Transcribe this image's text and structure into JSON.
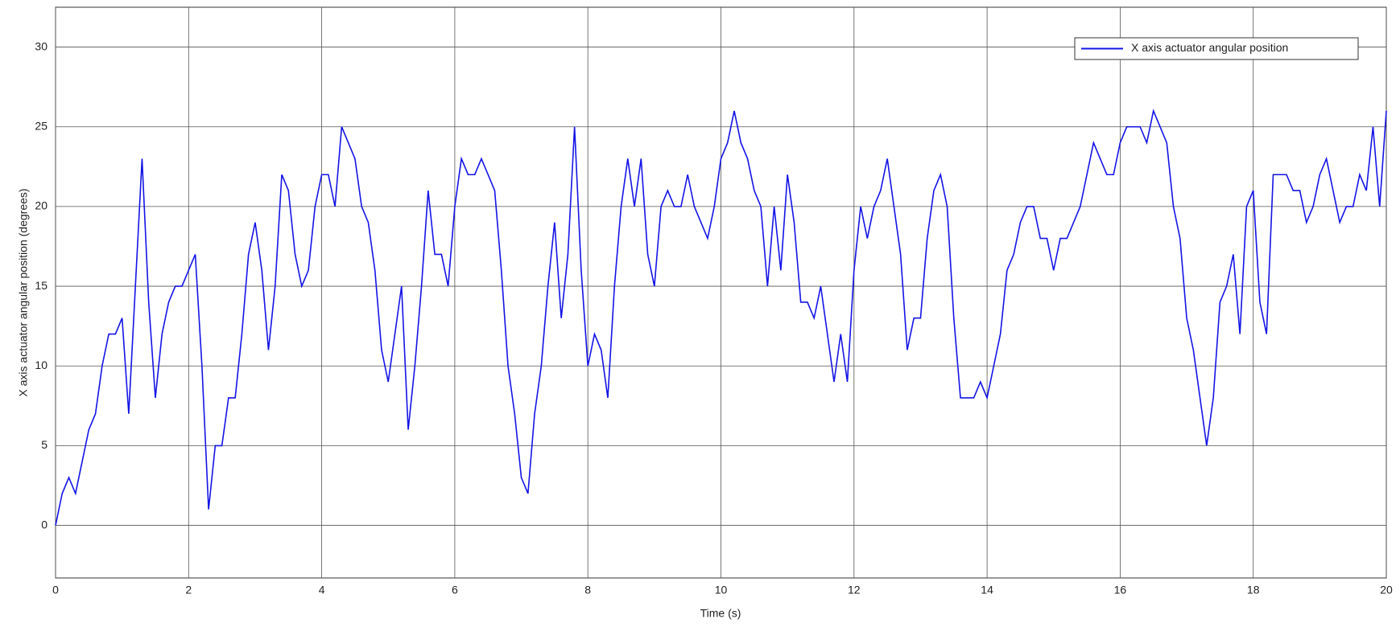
{
  "chart_data": {
    "type": "line",
    "xlabel": "Time (s)",
    "ylabel": "X axis actuator angular position (degrees)",
    "xlim": [
      0,
      20
    ],
    "xticks": [
      0,
      2,
      4,
      6,
      8,
      10,
      12,
      14,
      16,
      18,
      20
    ],
    "ylim": [
      -3.3,
      32.5
    ],
    "yticks": [
      0,
      5,
      10,
      15,
      20,
      25,
      30
    ],
    "grid": true,
    "legend": "upper right",
    "x": [
      0,
      0.1,
      0.2,
      0.3,
      0.4,
      0.5,
      0.6,
      0.7,
      0.8,
      0.9,
      1,
      1.1,
      1.2,
      1.3,
      1.4,
      1.5,
      1.6,
      1.7,
      1.8,
      1.9,
      2,
      2.1,
      2.2,
      2.3,
      2.4,
      2.5,
      2.6,
      2.7,
      2.8,
      2.9,
      3,
      3.1,
      3.2,
      3.3,
      3.4,
      3.5,
      3.6,
      3.7,
      3.8,
      3.9,
      4,
      4.1,
      4.2,
      4.3,
      4.4,
      4.5,
      4.6,
      4.7,
      4.8,
      4.9,
      5,
      5.1,
      5.2,
      5.3,
      5.4,
      5.5,
      5.6,
      5.7,
      5.8,
      5.9,
      6,
      6.1,
      6.2,
      6.3,
      6.4,
      6.5,
      6.6,
      6.7,
      6.8,
      6.9,
      7,
      7.1,
      7.2,
      7.3,
      7.4,
      7.5,
      7.6,
      7.7,
      7.8,
      7.9,
      8,
      8.1,
      8.2,
      8.3,
      8.4,
      8.5,
      8.6,
      8.7,
      8.8,
      8.9,
      9,
      9.1,
      9.2,
      9.3,
      9.4,
      9.5,
      9.6,
      9.7,
      9.8,
      9.9,
      10,
      10.1,
      10.2,
      10.3,
      10.4,
      10.5,
      10.6,
      10.7,
      10.8,
      10.9,
      11,
      11.1,
      11.2,
      11.3,
      11.4,
      11.5,
      11.6,
      11.7,
      11.8,
      11.9,
      12,
      12.1,
      12.2,
      12.3,
      12.4,
      12.5,
      12.6,
      12.7,
      12.8,
      12.9,
      13,
      13.1,
      13.2,
      13.3,
      13.4,
      13.5,
      13.6,
      13.7,
      13.8,
      13.9,
      14,
      14.1,
      14.2,
      14.3,
      14.4,
      14.5,
      14.6,
      14.7,
      14.8,
      14.9,
      15,
      15.1,
      15.2,
      15.3,
      15.4,
      15.5,
      15.6,
      15.7,
      15.8,
      15.9,
      16,
      16.1,
      16.2,
      16.3,
      16.4,
      16.5,
      16.6,
      16.7,
      16.8,
      16.9,
      17,
      17.1,
      17.2,
      17.3,
      17.4,
      17.5,
      17.6,
      17.7,
      17.8,
      17.9,
      18,
      18.1,
      18.2,
      18.3,
      18.4,
      18.5,
      18.6,
      18.7,
      18.8,
      18.9,
      19,
      19.1,
      19.2,
      19.3,
      19.4,
      19.5,
      19.6,
      19.7,
      19.8,
      19.9,
      20
    ],
    "series": [
      {
        "name": "X axis actuator angular position",
        "color": "#1414e6",
        "values": [
          0,
          2,
          3,
          2,
          4,
          6,
          7,
          10,
          12,
          12,
          13,
          7,
          15,
          23,
          14,
          8,
          12,
          14,
          15,
          15,
          16,
          17,
          10,
          1,
          5,
          5,
          8,
          8,
          12,
          17,
          19,
          16,
          11,
          15,
          22,
          21,
          17,
          15,
          16,
          20,
          22,
          22,
          20,
          25,
          24,
          23,
          20,
          19,
          16,
          11,
          9,
          12,
          15,
          6,
          10,
          15,
          21,
          17,
          17,
          15,
          20,
          23,
          22,
          22,
          23,
          22,
          21,
          16,
          10,
          7,
          3,
          2,
          7,
          10,
          15,
          19,
          13,
          17,
          25,
          16,
          10,
          12,
          11,
          8,
          15,
          20,
          23,
          20,
          23,
          17,
          15,
          20,
          21,
          20,
          20,
          22,
          20,
          19,
          18,
          20,
          23,
          24,
          26,
          24,
          23,
          21,
          20,
          15,
          20,
          16,
          22,
          19,
          14,
          14,
          13,
          15,
          12,
          9,
          12,
          9,
          16,
          20,
          18,
          20,
          21,
          23,
          20,
          17,
          11,
          13,
          13,
          18,
          21,
          22,
          20,
          13,
          8,
          8,
          8,
          9,
          8,
          10,
          12,
          16,
          17,
          19,
          20,
          20,
          18,
          18,
          16,
          18,
          18,
          19,
          20,
          22,
          24,
          23,
          22,
          22,
          24,
          25,
          25,
          25,
          24,
          26,
          25,
          24,
          20,
          18,
          13,
          11,
          8,
          5,
          8,
          14,
          15,
          17,
          12,
          20,
          21,
          14,
          12,
          22,
          22,
          22,
          21,
          21,
          19,
          20,
          22,
          23,
          21,
          19,
          20,
          20,
          22,
          21,
          25,
          20,
          26
        ]
      }
    ]
  }
}
